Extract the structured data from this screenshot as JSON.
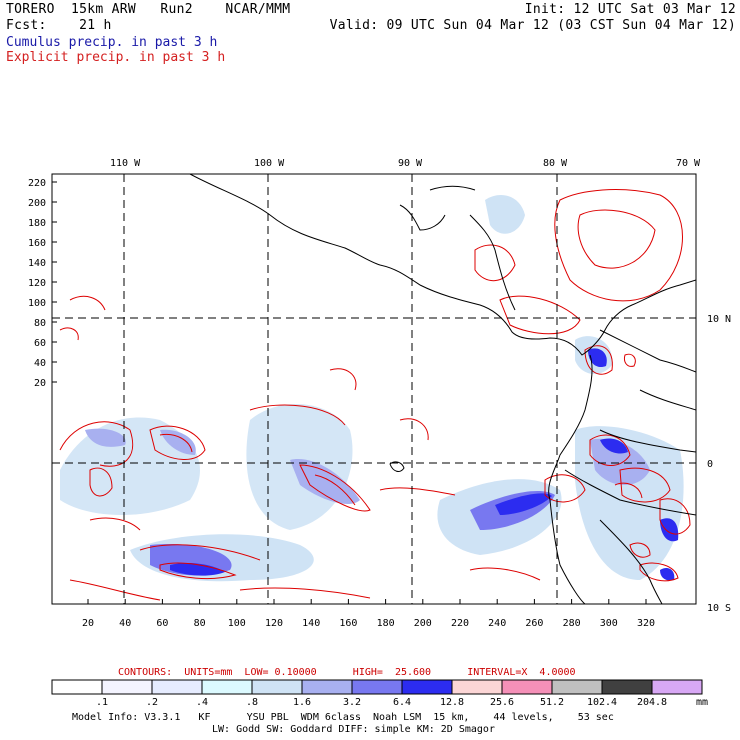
{
  "header": {
    "left_line1": "TORERO  15km ARW   Run2    NCAR/MMM",
    "left_line2": "Fcst:    21 h",
    "init": "Init: 12 UTC Sat 03 Mar 12",
    "valid": "Valid: 09 UTC Sun 04 Mar 12 (03 CST Sun 04 Mar 12)",
    "cumulus_label": "Cumulus precip. in past 3 h",
    "explicit_label": "Explicit precip. in past 3 h"
  },
  "map": {
    "top_labels": [
      "110 W",
      "100 W",
      "90 W",
      "80 W",
      "70 W"
    ],
    "right_labels": [
      "10 N",
      "0",
      "10 S"
    ],
    "y_ticks": [
      "220",
      "200",
      "180",
      "160",
      "140",
      "120",
      "100",
      "80",
      "60",
      "40",
      "20"
    ],
    "x_ticks": [
      "20",
      "40",
      "60",
      "80",
      "100",
      "120",
      "140",
      "160",
      "180",
      "200",
      "220",
      "240",
      "260",
      "280",
      "300",
      "320"
    ],
    "cumulus_color": "#3333ee",
    "explicit_color": "#dd0000"
  },
  "contours": {
    "text": "CONTOURS:  UNITS=mm  LOW= 0.10000      HIGH=  25.600      INTERVAL=X  4.0000"
  },
  "colorbar": {
    "labels": [
      ".1",
      ".2",
      ".4",
      ".8",
      "1.6",
      "3.2",
      "6.4",
      "12.8",
      "25.6",
      "51.2",
      "102.4",
      "204.8"
    ],
    "unit": "mm",
    "colors": [
      "#ffffff",
      "#f4f4ff",
      "#e6ecff",
      "#dcfaff",
      "#cfe3f5",
      "#a8b0f0",
      "#7878f0",
      "#2c2cf0",
      "#fcd6d6",
      "#f590b8",
      "#c0c0c0",
      "#404040",
      "#d8a8f5"
    ]
  },
  "model_info": {
    "line1": "Model Info: V3.3.1   KF      YSU PBL  WDM 6class  Noah LSM  15 km,    44 levels,    53 sec",
    "line2": "LW: Godd SW: Goddard DIFF: simple KM: 2D Smagor"
  }
}
